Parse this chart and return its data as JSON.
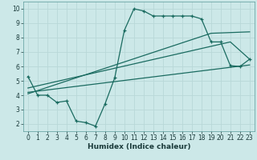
{
  "title": "",
  "xlabel": "Humidex (Indice chaleur)",
  "bg_color": "#cce8e8",
  "grid_color": "#b8d8d8",
  "line_color": "#1a6b60",
  "xlim": [
    -0.5,
    23.5
  ],
  "ylim": [
    1.5,
    10.5
  ],
  "xticks": [
    0,
    1,
    2,
    3,
    4,
    5,
    6,
    7,
    8,
    9,
    10,
    11,
    12,
    13,
    14,
    15,
    16,
    17,
    18,
    19,
    20,
    21,
    22,
    23
  ],
  "yticks": [
    2,
    3,
    4,
    5,
    6,
    7,
    8,
    9,
    10
  ],
  "curve1_x": [
    0,
    1,
    2,
    3,
    4,
    5,
    6,
    7,
    8,
    9,
    10,
    11,
    12,
    13,
    14,
    15,
    16,
    17,
    18,
    19,
    20,
    21,
    22,
    23
  ],
  "curve1_y": [
    5.3,
    4.0,
    4.0,
    3.5,
    3.6,
    2.2,
    2.1,
    1.85,
    3.4,
    5.2,
    8.5,
    10.0,
    9.85,
    9.5,
    9.5,
    9.5,
    9.5,
    9.5,
    9.3,
    7.7,
    7.7,
    6.05,
    6.0,
    6.5
  ],
  "line2_x": [
    0,
    19,
    23
  ],
  "line2_y": [
    4.1,
    8.3,
    8.4
  ],
  "line3_x": [
    0,
    21,
    23
  ],
  "line3_y": [
    4.5,
    7.7,
    6.5
  ],
  "line4_x": [
    0,
    23
  ],
  "line4_y": [
    4.2,
    6.1
  ]
}
